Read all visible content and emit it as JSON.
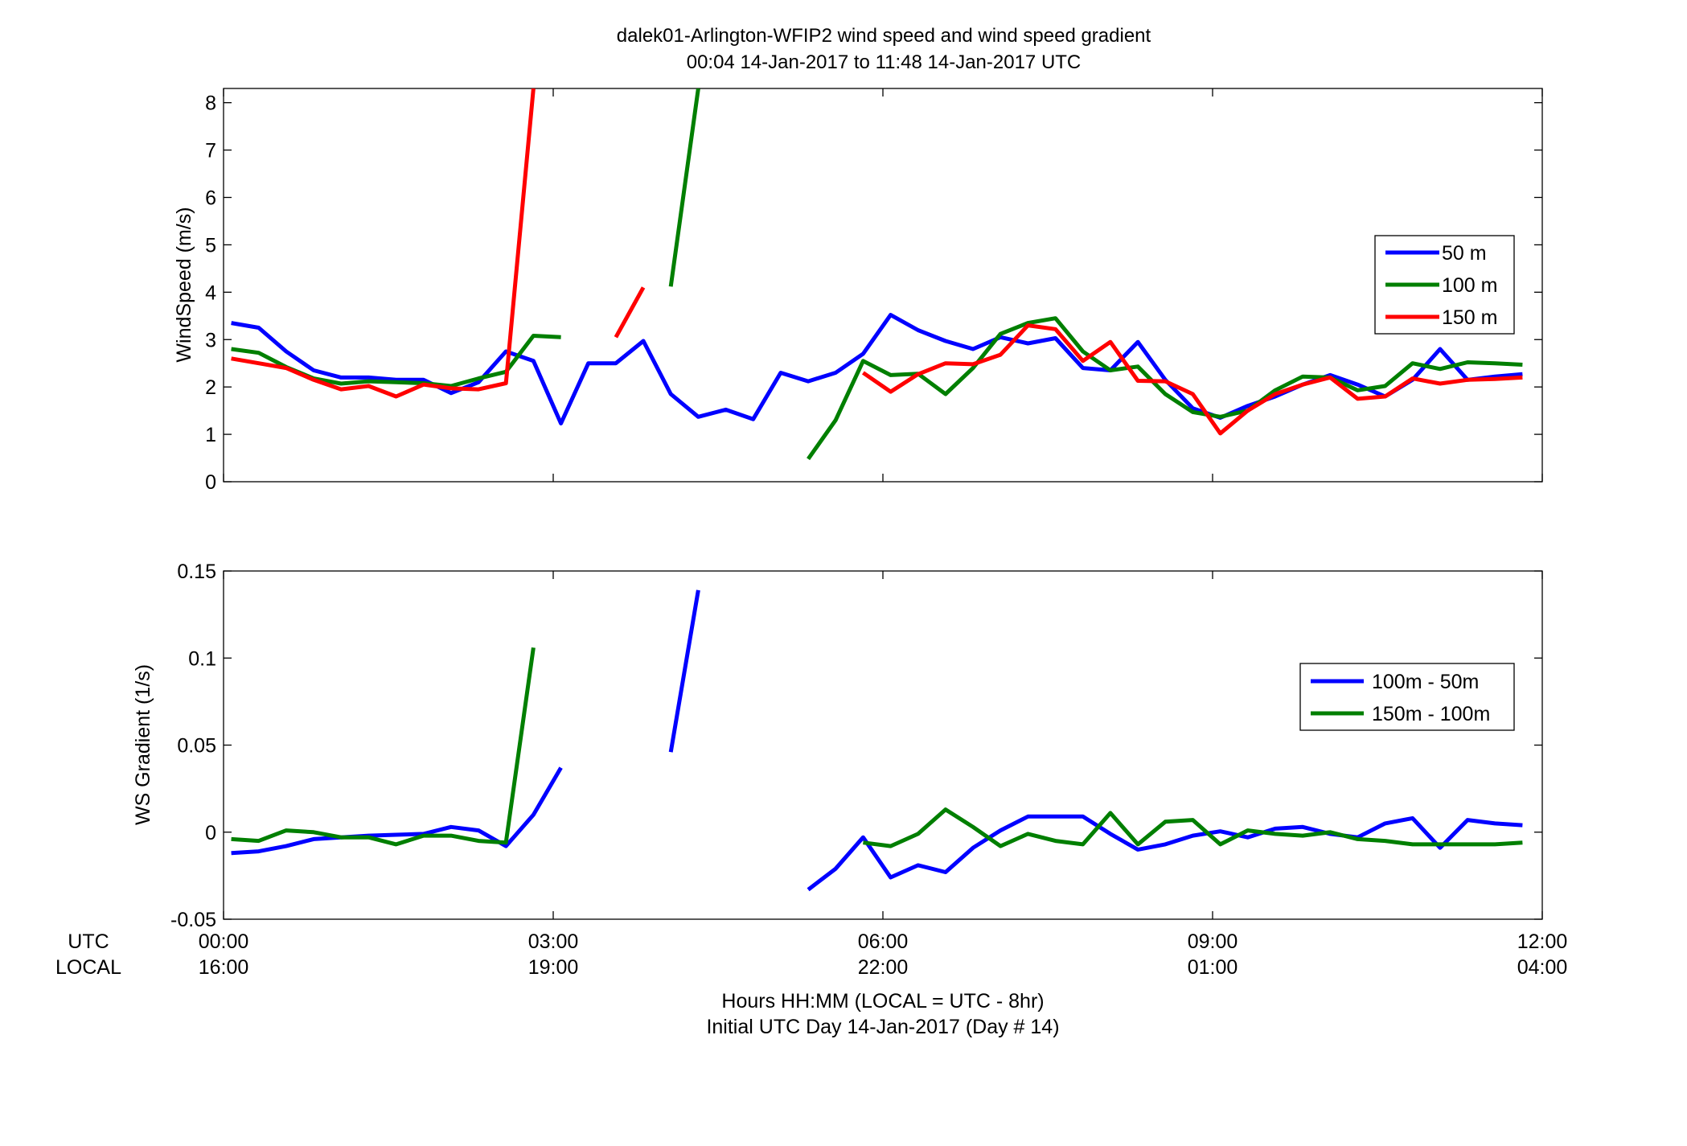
{
  "figure": {
    "title_line1": "dalek01-Arlington-WFIP2  wind speed and wind speed gradient",
    "title_line2": "00:04 14-Jan-2017 to 11:48 14-Jan-2017  UTC",
    "time_row_label_utc": "UTC",
    "time_row_label_local": "LOCAL",
    "xlabel_line1": "Hours HH:MM  (LOCAL = UTC - 8hr)",
    "xlabel_line2": "Initial UTC Day 14-Jan-2017 (Day # 14)"
  },
  "chart_data": [
    {
      "type": "line",
      "title": "",
      "xlabel": "",
      "ylabel": "WindSpeed (m/s)",
      "xlim": [
        0,
        12
      ],
      "ylim": [
        0,
        8.3
      ],
      "yticks": [
        0,
        1,
        2,
        3,
        4,
        5,
        6,
        7,
        8
      ],
      "ytick_labels": [
        "0",
        "1",
        "2",
        "3",
        "4",
        "5",
        "6",
        "7",
        "8"
      ],
      "xticks": [
        0,
        3,
        6,
        9,
        12
      ],
      "grid": false,
      "legend_position": "right",
      "series": [
        {
          "name": "50 m",
          "color": "#0000ff",
          "x": [
            0.07,
            0.32,
            0.57,
            0.82,
            1.07,
            1.32,
            1.57,
            1.82,
            2.07,
            2.32,
            2.57,
            2.82,
            3.07,
            3.32,
            3.57,
            3.82,
            4.07,
            4.32,
            4.57,
            4.82,
            5.07,
            5.32,
            5.57,
            5.82,
            6.07,
            6.32,
            6.57,
            6.82,
            7.07,
            7.32,
            7.57,
            7.82,
            8.07,
            8.32,
            8.57,
            8.82,
            9.07,
            9.32,
            9.57,
            9.82,
            10.07,
            10.32,
            10.57,
            10.82,
            11.07,
            11.32,
            11.57,
            11.82
          ],
          "y": [
            3.35,
            3.25,
            2.75,
            2.35,
            2.2,
            2.2,
            2.15,
            2.15,
            1.87,
            2.1,
            2.75,
            2.55,
            1.23,
            2.5,
            2.5,
            2.97,
            1.85,
            1.37,
            1.52,
            1.32,
            2.3,
            2.12,
            2.3,
            2.7,
            3.52,
            3.2,
            2.97,
            2.8,
            3.05,
            2.92,
            3.03,
            2.4,
            2.35,
            2.95,
            2.15,
            1.55,
            1.35,
            1.6,
            1.8,
            2.05,
            2.25,
            2.05,
            1.8,
            2.15,
            2.8,
            2.15,
            2.22,
            2.27
          ]
        },
        {
          "name": "100 m",
          "color": "#007f00",
          "x": [
            0.07,
            0.32,
            0.57,
            0.82,
            1.07,
            1.32,
            1.57,
            1.82,
            2.07,
            2.32,
            2.57,
            2.82,
            3.07,
            null,
            4.07,
            4.32,
            null,
            5.32,
            5.57,
            5.82,
            6.07,
            6.32,
            6.57,
            6.82,
            7.07,
            7.32,
            7.57,
            7.82,
            8.07,
            8.32,
            8.57,
            8.82,
            9.07,
            9.32,
            9.57,
            9.82,
            10.07,
            10.32,
            10.57,
            10.82,
            11.07,
            11.32,
            11.57,
            11.82
          ],
          "y": [
            2.8,
            2.72,
            2.42,
            2.18,
            2.07,
            2.12,
            2.1,
            2.08,
            2.02,
            2.18,
            2.32,
            3.08,
            3.05,
            null,
            4.12,
            8.3,
            null,
            0.48,
            1.3,
            2.55,
            2.25,
            2.28,
            1.85,
            2.4,
            3.12,
            3.35,
            3.45,
            2.75,
            2.35,
            2.43,
            1.85,
            1.47,
            1.37,
            1.5,
            1.93,
            2.22,
            2.2,
            1.93,
            2.02,
            2.5,
            2.38,
            2.52,
            2.5,
            2.47
          ]
        },
        {
          "name": "150 m",
          "color": "#ff0000",
          "x": [
            0.07,
            0.32,
            0.57,
            0.82,
            1.07,
            1.32,
            1.57,
            1.82,
            2.07,
            2.32,
            2.57,
            2.82,
            null,
            3.57,
            3.82,
            null,
            5.82,
            6.07,
            6.32,
            6.57,
            6.82,
            7.07,
            7.32,
            7.57,
            7.82,
            8.07,
            8.32,
            8.57,
            8.82,
            9.07,
            9.32,
            9.57,
            9.82,
            10.07,
            10.32,
            10.57,
            10.82,
            11.07,
            11.32,
            11.57,
            11.82
          ],
          "y": [
            2.6,
            2.5,
            2.4,
            2.15,
            1.95,
            2.02,
            1.8,
            2.05,
            1.97,
            1.95,
            2.08,
            8.3,
            null,
            3.05,
            4.1,
            null,
            2.3,
            1.9,
            2.27,
            2.5,
            2.48,
            2.68,
            3.3,
            3.22,
            2.55,
            2.95,
            2.13,
            2.12,
            1.85,
            1.02,
            1.5,
            1.85,
            2.05,
            2.2,
            1.75,
            1.8,
            2.18,
            2.07,
            2.15,
            2.17,
            2.2
          ]
        }
      ]
    },
    {
      "type": "line",
      "title": "",
      "xlabel": "",
      "ylabel": "WS Gradient (1/s)",
      "xlim": [
        0,
        12
      ],
      "ylim": [
        -0.05,
        0.15
      ],
      "yticks": [
        -0.05,
        0,
        0.05,
        0.1,
        0.15
      ],
      "ytick_labels": [
        "-0.05",
        "0",
        "0.05",
        "0.1",
        "0.15"
      ],
      "xticks": [
        0,
        3,
        6,
        9,
        12
      ],
      "xtick_labels_utc": [
        "00:00",
        "03:00",
        "06:00",
        "09:00",
        "12:00"
      ],
      "xtick_labels_local": [
        "16:00",
        "19:00",
        "22:00",
        "01:00",
        "04:00"
      ],
      "grid": false,
      "legend_position": "right",
      "series": [
        {
          "name": "100m - 50m",
          "color": "#0000ff",
          "x": [
            0.07,
            0.32,
            0.57,
            0.82,
            1.07,
            1.32,
            1.57,
            1.82,
            2.07,
            2.32,
            2.57,
            2.82,
            3.07,
            null,
            4.07,
            4.32,
            null,
            5.32,
            5.57,
            5.82,
            6.07,
            6.32,
            6.57,
            6.82,
            7.07,
            7.32,
            7.57,
            7.82,
            8.07,
            8.32,
            8.57,
            8.82,
            9.07,
            9.32,
            9.57,
            9.82,
            10.07,
            10.32,
            10.57,
            10.82,
            11.07,
            11.32,
            11.57,
            11.82
          ],
          "y": [
            -0.012,
            -0.011,
            -0.008,
            -0.004,
            -0.003,
            -0.002,
            -0.0015,
            -0.001,
            0.003,
            0.001,
            -0.008,
            0.01,
            0.037,
            null,
            0.046,
            0.139,
            null,
            -0.033,
            -0.021,
            -0.003,
            -0.026,
            -0.019,
            -0.023,
            -0.009,
            0.001,
            0.009,
            0.009,
            0.009,
            -0.001,
            -0.01,
            -0.007,
            -0.002,
            0.0005,
            -0.003,
            0.002,
            0.003,
            -0.001,
            -0.003,
            0.005,
            0.008,
            -0.009,
            0.007,
            0.005,
            0.004
          ]
        },
        {
          "name": "150m - 100m",
          "color": "#007f00",
          "x": [
            0.07,
            0.32,
            0.57,
            0.82,
            1.07,
            1.32,
            1.57,
            1.82,
            2.07,
            2.32,
            2.57,
            2.82,
            null,
            5.82,
            6.07,
            6.32,
            6.57,
            6.82,
            7.07,
            7.32,
            7.57,
            7.82,
            8.07,
            8.32,
            8.57,
            8.82,
            9.07,
            9.32,
            9.57,
            9.82,
            10.07,
            10.32,
            10.57,
            10.82,
            11.07,
            11.32,
            11.57,
            11.82
          ],
          "y": [
            -0.004,
            -0.005,
            0.001,
            0.0,
            -0.003,
            -0.003,
            -0.007,
            -0.002,
            -0.002,
            -0.005,
            -0.006,
            0.106,
            null,
            -0.006,
            -0.008,
            -0.001,
            0.013,
            0.003,
            -0.008,
            -0.001,
            -0.005,
            -0.007,
            0.011,
            -0.007,
            0.006,
            0.007,
            -0.007,
            0.001,
            -0.001,
            -0.002,
            0.0,
            -0.004,
            -0.005,
            -0.007,
            -0.007,
            -0.007,
            -0.007,
            -0.006
          ]
        }
      ]
    }
  ]
}
